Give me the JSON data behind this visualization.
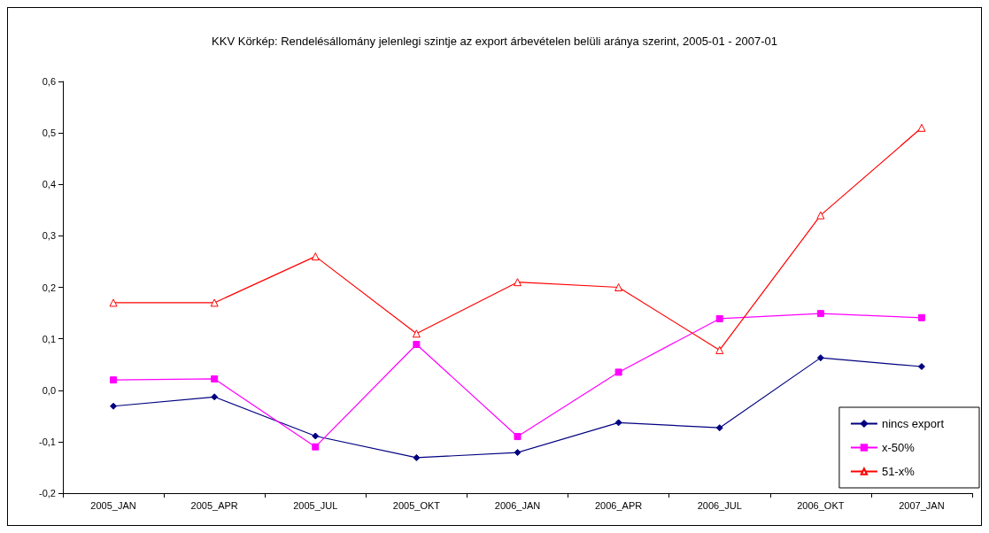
{
  "chart_data": {
    "type": "line",
    "title": "KKV Körkép: Rendelésállomány jelenlegi szintje az export árbevételen belüli aránya szerint, 2005-01 - 2007-01",
    "categories": [
      "2005_JAN",
      "2005_APR",
      "2005_JUL",
      "2005_OKT",
      "2006_JAN",
      "2006_APR",
      "2006_JUL",
      "2006_OKT",
      "2007_JAN"
    ],
    "series": [
      {
        "name": "nincs export",
        "color": "#000080",
        "marker": "diamond",
        "values": [
          -0.031,
          -0.013,
          -0.089,
          -0.131,
          -0.121,
          -0.063,
          -0.073,
          0.063,
          0.046
        ]
      },
      {
        "name": "x-50%",
        "color": "#ff00ff",
        "marker": "square",
        "values": [
          0.02,
          0.022,
          -0.11,
          0.089,
          -0.09,
          0.035,
          0.139,
          0.149,
          0.141
        ]
      },
      {
        "name": "51-x%",
        "color": "#ff0000",
        "marker": "triangle",
        "values": [
          0.17,
          0.17,
          0.26,
          0.11,
          0.21,
          0.2,
          0.078,
          0.34,
          0.51
        ]
      }
    ],
    "ylim": [
      -0.2,
      0.6
    ],
    "yticks": [
      {
        "value": -0.2,
        "label": "-0,2"
      },
      {
        "value": -0.1,
        "label": "-0,1"
      },
      {
        "value": 0,
        "label": "0,0"
      },
      {
        "value": 0.1,
        "label": "0,1"
      },
      {
        "value": 0.2,
        "label": "0,2"
      },
      {
        "value": 0.3,
        "label": "0,3"
      },
      {
        "value": 0.4,
        "label": "0,4"
      },
      {
        "value": 0.5,
        "label": "0,5"
      },
      {
        "value": 0.6,
        "label": "0,6"
      }
    ],
    "grid": false,
    "legend": "bottom right",
    "line_style": "solid"
  }
}
